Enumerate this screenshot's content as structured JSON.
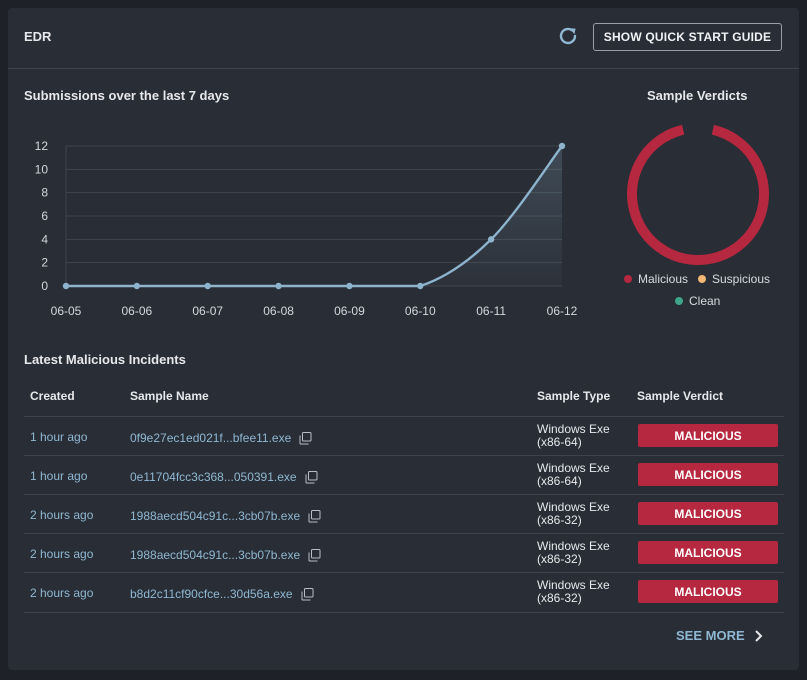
{
  "header": {
    "title": "EDR",
    "guide_button": "SHOW QUICK START GUIDE"
  },
  "submissions": {
    "title": "Submissions over the last 7 days"
  },
  "chart_data": [
    {
      "type": "area",
      "title": "Submissions over the last 7 days",
      "x": [
        "06-05",
        "06-06",
        "06-07",
        "06-08",
        "06-09",
        "06-10",
        "06-11",
        "06-12"
      ],
      "values": [
        0,
        0,
        0,
        0,
        0,
        0,
        4,
        12
      ],
      "yticks": [
        "12",
        "10",
        "8",
        "6",
        "4",
        "2",
        "0"
      ],
      "ylim": [
        0,
        12
      ],
      "grid": true,
      "line_color": "#8db3cd"
    },
    {
      "type": "pie",
      "title": "Sample Verdicts",
      "categories": [
        "Malicious",
        "Suspicious",
        "Clean"
      ],
      "values": [
        100,
        0,
        0
      ],
      "colors": [
        "#b5283f",
        "#f2b774",
        "#3fa58a"
      ],
      "legend": "bottom"
    }
  ],
  "verdicts": {
    "title": "Sample Verdicts",
    "legend": [
      "Malicious",
      "Suspicious",
      "Clean"
    ]
  },
  "incidents": {
    "title": "Latest Malicious Incidents",
    "columns": {
      "created": "Created",
      "name": "Sample Name",
      "type": "Sample Type",
      "verdict": "Sample Verdict"
    },
    "rows": [
      {
        "created": "1 hour ago",
        "name": "0f9e27ec1ed021f...bfee11.exe",
        "type1": "Windows Exe",
        "type2": "(x86-64)",
        "verdict": "MALICIOUS"
      },
      {
        "created": "1 hour ago",
        "name": "0e11704fcc3c368...050391.exe",
        "type1": "Windows Exe",
        "type2": "(x86-64)",
        "verdict": "MALICIOUS"
      },
      {
        "created": "2 hours ago",
        "name": "1988aecd504c91c...3cb07b.exe",
        "type1": "Windows Exe",
        "type2": "(x86-32)",
        "verdict": "MALICIOUS"
      },
      {
        "created": "2 hours ago",
        "name": "1988aecd504c91c...3cb07b.exe",
        "type1": "Windows Exe",
        "type2": "(x86-32)",
        "verdict": "MALICIOUS"
      },
      {
        "created": "2 hours ago",
        "name": "b8d2c11cf90cfce...30d56a.exe",
        "type1": "Windows Exe",
        "type2": "(x86-32)",
        "verdict": "MALICIOUS"
      }
    ],
    "see_more": "SEE MORE"
  }
}
